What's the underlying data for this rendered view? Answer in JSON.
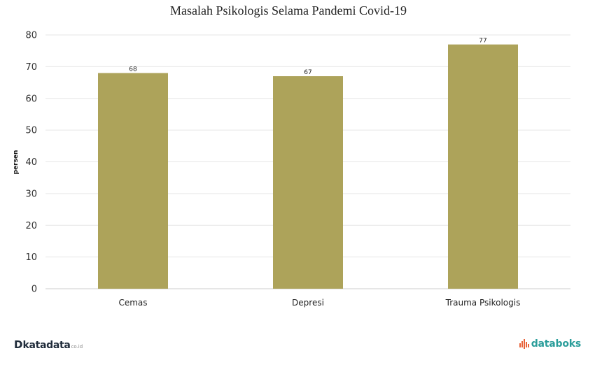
{
  "chart_data": {
    "type": "bar",
    "title": "Masalah Psikologis Selama Pandemi Covid-19",
    "categories": [
      "Cemas",
      "Depresi",
      "Trauma Psikologis"
    ],
    "values": [
      68,
      67,
      77
    ],
    "data_labels": [
      "68",
      "67",
      "77"
    ],
    "xlabel": "",
    "ylabel": "persen",
    "ylim": [
      0,
      80
    ],
    "yticks": [
      "0",
      "10",
      "20",
      "30",
      "40",
      "50",
      "60",
      "70",
      "80"
    ],
    "grid": true,
    "bar_color": "#ada35a"
  },
  "branding": {
    "left_mark": "D",
    "left_name": "katadata",
    "left_tld": "co.id",
    "right_name": "databoks",
    "right_icon": "databoks-bars-icon",
    "right_color": "#2a9d9a",
    "right_accent": "#e8633a"
  }
}
